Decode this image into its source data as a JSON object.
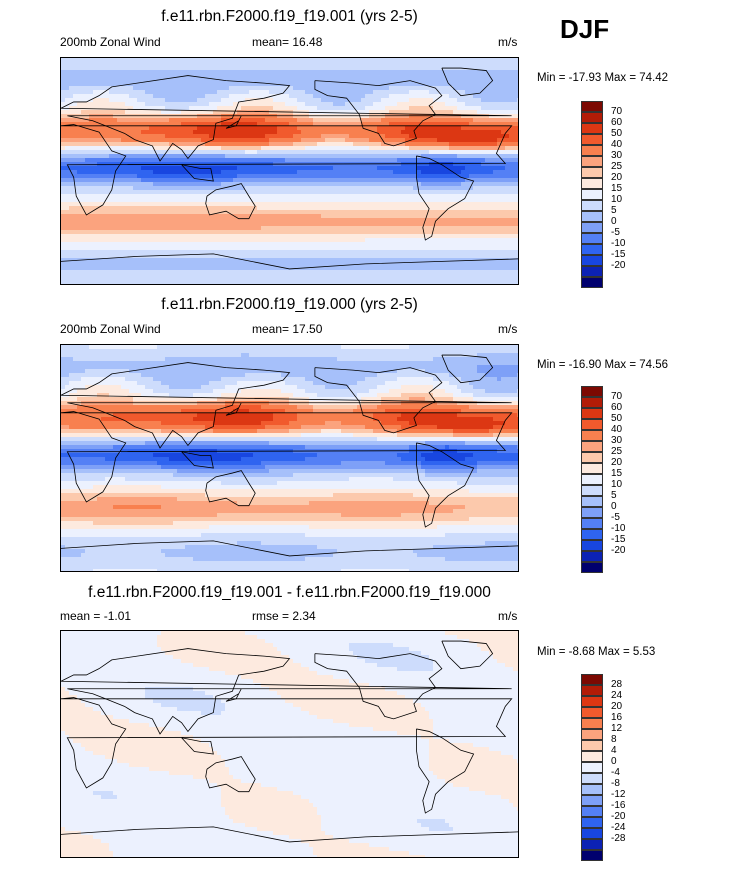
{
  "season": "DJF",
  "colors": {
    "scale": [
      "#00006e",
      "#0c22b4",
      "#1846e0",
      "#2f64f0",
      "#5480f5",
      "#7ea0f7",
      "#a6c0fa",
      "#cddcfc",
      "#ecf1fe",
      "#fdeadf",
      "#fcc9ac",
      "#fba37e",
      "#f8804f",
      "#f15a2d",
      "#dc3713",
      "#b21c07",
      "#7c0902"
    ],
    "coast": "#000000"
  },
  "panels": [
    {
      "title": "f.e11.rbn.F2000.f19_f19.001 (yrs 2-5)",
      "left_text": "200mb Zonal Wind",
      "center_text": "mean=  16.48",
      "right_text": "m/s",
      "minmax": "Min = -17.93 Max =  74.42",
      "colorbar_levels": [
        "70",
        "60",
        "50",
        "40",
        "30",
        "25",
        "20",
        "15",
        "10",
        "5",
        "0",
        "-5",
        "-10",
        "-15",
        "-20"
      ],
      "field": "ctrl"
    },
    {
      "title": "f.e11.rbn.F2000.f19_f19.000 (yrs 2-5)",
      "left_text": "200mb Zonal Wind",
      "center_text": "mean=  17.50",
      "right_text": "m/s",
      "minmax": "Min = -16.90 Max =  74.56",
      "colorbar_levels": [
        "70",
        "60",
        "50",
        "40",
        "30",
        "25",
        "20",
        "15",
        "10",
        "5",
        "0",
        "-5",
        "-10",
        "-15",
        "-20"
      ],
      "field": "test"
    },
    {
      "title": "f.e11.rbn.F2000.f19_f19.001 - f.e11.rbn.F2000.f19_f19.000",
      "left_text": "mean =  -1.01",
      "center_text": "rmse =   2.34",
      "right_text": "m/s",
      "minmax": "Min =  -8.68 Max =   5.53",
      "colorbar_levels": [
        "28",
        "24",
        "20",
        "16",
        "12",
        "8",
        "4",
        "0",
        "-4",
        "-8",
        "-12",
        "-16",
        "-20",
        "-24",
        "-28"
      ],
      "field": "diff"
    }
  ]
}
